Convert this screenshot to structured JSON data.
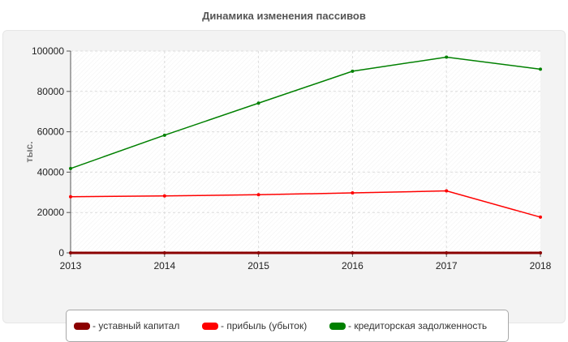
{
  "chart_data": {
    "type": "line",
    "title": "Динамика изменения пассивов",
    "ylabel": "тыс.",
    "xlabel": "",
    "x": [
      "2013",
      "2014",
      "2015",
      "2016",
      "2017",
      "2018"
    ],
    "ylim": [
      0,
      100000
    ],
    "yticks": [
      "0",
      "20000",
      "40000",
      "60000",
      "80000",
      "100000"
    ],
    "grid": true,
    "legend_position": "bottom",
    "series": [
      {
        "name": "- уставный капитал",
        "color": "#8b0000",
        "values": [
          0,
          0,
          0,
          0,
          0,
          0
        ]
      },
      {
        "name": "- прибыль (убыток)",
        "color": "#ff0000",
        "values": [
          27800,
          28200,
          28800,
          29700,
          30700,
          17700
        ]
      },
      {
        "name": "- кредиторская задолженность",
        "color": "#008000",
        "values": [
          41800,
          58300,
          74200,
          90000,
          97000,
          91000
        ]
      }
    ]
  }
}
